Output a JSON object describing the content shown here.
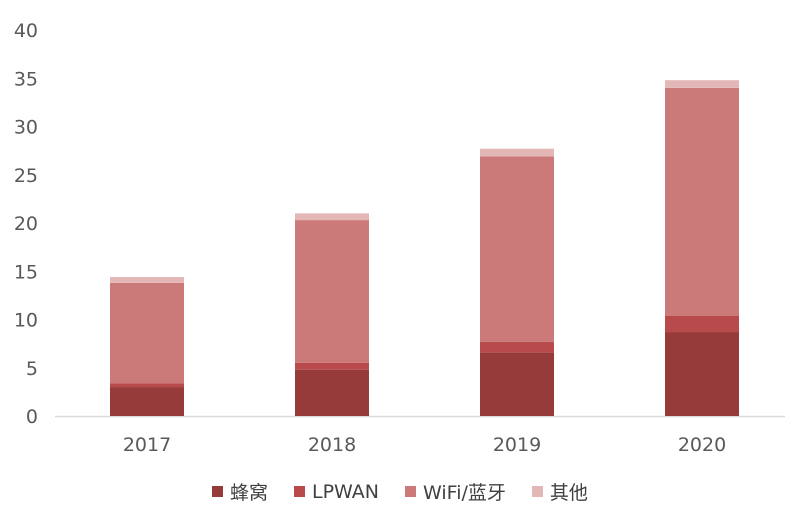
{
  "chart_data": {
    "type": "bar",
    "stacked": true,
    "categories": [
      "2017",
      "2018",
      "2019",
      "2020"
    ],
    "series": [
      {
        "name": "蜂窝",
        "color": "#963a3a",
        "values": [
          3.0,
          4.8,
          6.6,
          8.7
        ]
      },
      {
        "name": "LPWAN",
        "color": "#b94a4c",
        "values": [
          0.4,
          0.7,
          1.1,
          1.7
        ]
      },
      {
        "name": "WiFi/蓝牙",
        "color": "#cc7a79",
        "values": [
          10.4,
          14.8,
          19.2,
          23.6
        ]
      },
      {
        "name": "其他",
        "color": "#e4b7b7",
        "values": [
          0.6,
          0.7,
          0.8,
          0.8
        ]
      }
    ],
    "yticks": [
      "0",
      "5",
      "10",
      "15",
      "20",
      "25",
      "30",
      "35",
      "40"
    ],
    "ylim": [
      0,
      40
    ],
    "grid": false,
    "legend": "bottom"
  }
}
